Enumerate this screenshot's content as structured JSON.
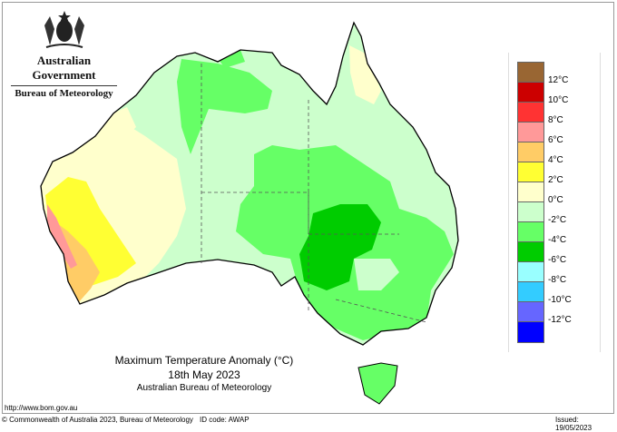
{
  "header": {
    "government": "Australian Government",
    "bureau": "Bureau of Meteorology"
  },
  "title": {
    "line1": "Maximum Temperature Anomaly (°C)",
    "line2": "18th May 2023",
    "line3": "Australian Bureau of Meteorology"
  },
  "legend": {
    "colors": [
      "#996633",
      "#cc0000",
      "#ff3333",
      "#ff9999",
      "#ffcc66",
      "#ffff33",
      "#ffffcc",
      "#ccffcc",
      "#66ff66",
      "#00cc00",
      "#99ffff",
      "#33ccff",
      "#6666ff",
      "#0000ff"
    ],
    "labels": [
      "12°C",
      "10°C",
      "8°C",
      "6°C",
      "4°C",
      "2°C",
      "0°C",
      "-2°C",
      "-4°C",
      "-6°C",
      "-8°C",
      "-10°C",
      "-12°C"
    ]
  },
  "footer": {
    "url": "http://www.bom.gov.au",
    "copyright": "© Commonwealth of Australia 2023, Bureau of Meteorology",
    "id_code": "ID code: AWAP",
    "issued": "Issued: 19/05/2023"
  }
}
